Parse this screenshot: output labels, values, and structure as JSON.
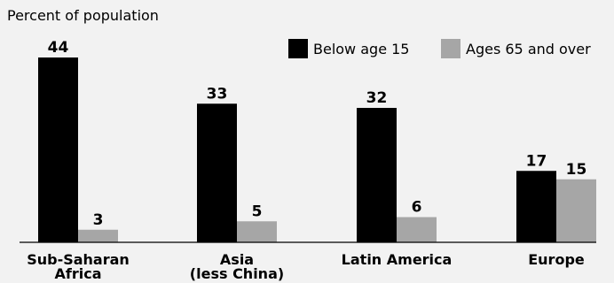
{
  "chart_data": {
    "type": "bar",
    "title": "",
    "ylabel": "Percent of population",
    "xlabel": "",
    "categories": [
      [
        "Sub-Saharan",
        "Africa"
      ],
      [
        "Asia",
        "(less China)"
      ],
      [
        "Latin America"
      ],
      [
        "Europe"
      ]
    ],
    "series": [
      {
        "name": "Below age 15",
        "values": [
          44,
          33,
          32,
          17
        ],
        "color": "#000000"
      },
      {
        "name": "Ages 65 and over",
        "values": [
          3,
          5,
          6,
          15
        ],
        "color": "#a6a6a6"
      }
    ],
    "ylim": [
      0,
      46
    ],
    "legend_position": "top-right",
    "grid": false,
    "data_labels": true
  }
}
